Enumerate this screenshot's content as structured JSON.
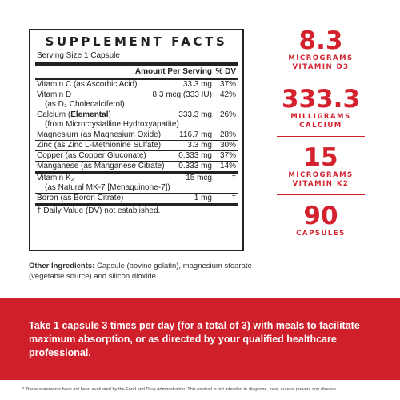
{
  "facts": {
    "title": "SUPPLEMENT FACTS",
    "serving_size": "Serving Size 1 Capsule",
    "header_amount": "Amount Per Serving",
    "header_dv": "% DV",
    "rows": [
      {
        "name": "Vitamin C (as Ascorbic Acid)",
        "amount": "33.3 mg",
        "dv": "37%",
        "sub": ""
      },
      {
        "name": "Vitamin D",
        "amount": "8.3 mcg (333 IU)",
        "dv": "42%",
        "sub": "(as D₃ Cholecalciferol)"
      },
      {
        "name": "Calcium (Elemental)",
        "amount": "333.3 mg",
        "dv": "26%",
        "sub": "(from Microcrystalline Hydroxyapatite)"
      },
      {
        "name": "Magnesium (as Magnesium Oxide)",
        "amount": "116.7 mg",
        "dv": "28%",
        "sub": ""
      },
      {
        "name": "Zinc (as Zinc L-Methionine Sulfate)",
        "amount": "3.3 mg",
        "dv": "30%",
        "sub": ""
      },
      {
        "name": "Copper (as Copper Gluconate)",
        "amount": "0.333 mg",
        "dv": "37%",
        "sub": ""
      },
      {
        "name": "Manganese (as Manganese Citrate)",
        "amount": "0.333 mg",
        "dv": "14%",
        "sub": ""
      },
      {
        "name": "Vitamin K₂",
        "amount": "15 mcg",
        "dv": "†",
        "sub": "(as Natural MK-7 [Menaquinone-7])"
      },
      {
        "name": "Boron (as Boron Citrate)",
        "amount": "1 mg",
        "dv": "†",
        "sub": ""
      }
    ],
    "footnote": "† Daily Value (DV) not established."
  },
  "other_ingredients": {
    "label": "Other Ingredients:",
    "text": " Capsule (bovine gelatin), magnesium stearate (vegetable source) and silicon dioxide."
  },
  "stats": [
    {
      "number": "8.3",
      "label_line1": "MICROGRAMS",
      "label_line2": "VITAMIN D3"
    },
    {
      "number": "333.3",
      "label_line1": "MILLIGRAMS",
      "label_line2": "CALCIUM"
    },
    {
      "number": "15",
      "label_line1": "MICROGRAMS",
      "label_line2": "VITAMIN K2"
    },
    {
      "number": "90",
      "label_line1": "CAPSULES",
      "label_line2": ""
    }
  ],
  "directions": "Take 1 capsule 3 times per day (for a total of 3) with meals to facilitate maximum absorption, or as directed by your qualified healthcare professional.",
  "disclaimer": "* These statements have not been evaluated by the Food and Drug Administration. This product is not intended to diagnose, treat, cure or prevent any disease.",
  "colors": {
    "accent": "#d3222e",
    "banner": "#cf1f2b",
    "text": "#222222"
  }
}
